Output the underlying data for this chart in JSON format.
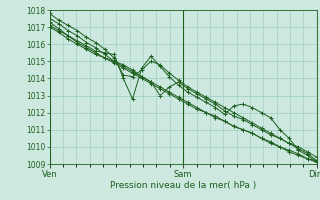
{
  "title": "",
  "xlabel": "Pression niveau de la mer( hPa )",
  "bg_color": "#cce8df",
  "grid_color": "#99cbbf",
  "line_color": "#1e5e1e",
  "ylim": [
    1009,
    1018
  ],
  "yticks": [
    1009,
    1010,
    1011,
    1012,
    1013,
    1014,
    1015,
    1016,
    1017,
    1018
  ],
  "xtick_labels": [
    "Ven",
    "Sam",
    "Dim"
  ],
  "xtick_positions": [
    0.0,
    0.5,
    1.0
  ],
  "vline_positions": [
    0.0,
    0.5,
    1.0
  ],
  "series": [
    [
      1017.5,
      1017.2,
      1016.8,
      1016.5,
      1016.1,
      1015.8,
      1015.4,
      1015.0,
      1014.8,
      1014.5,
      1014.1,
      1013.8,
      1013.5,
      1013.2,
      1012.9,
      1012.6,
      1012.3,
      1012.0,
      1011.8,
      1011.5,
      1011.2,
      1011.0,
      1010.8,
      1010.5,
      1010.2,
      1010.0,
      1009.7,
      1009.5,
      1009.3,
      1009.2
    ],
    [
      1017.0,
      1016.7,
      1016.3,
      1016.0,
      1015.7,
      1015.4,
      1015.2,
      1015.0,
      1014.7,
      1014.4,
      1014.1,
      1013.8,
      1013.0,
      1013.5,
      1013.8,
      1013.4,
      1013.1,
      1012.8,
      1012.5,
      1012.1,
      1011.8,
      1011.6,
      1011.3,
      1011.0,
      1010.7,
      1010.5,
      1010.2,
      1010.0,
      1009.7,
      1009.4
    ],
    [
      1017.8,
      1017.4,
      1017.1,
      1016.8,
      1016.4,
      1016.1,
      1015.7,
      1015.2,
      1014.2,
      1014.1,
      1014.5,
      1015.0,
      1014.8,
      1014.3,
      1013.9,
      1013.5,
      1013.2,
      1012.9,
      1012.6,
      1012.3,
      1012.0,
      1011.7,
      1011.4,
      1011.1,
      1010.8,
      1010.5,
      1010.2,
      1009.9,
      1009.6,
      1009.2
    ],
    [
      1017.3,
      1016.9,
      1016.5,
      1016.2,
      1015.9,
      1015.6,
      1015.5,
      1015.4,
      1014.0,
      1012.8,
      1014.6,
      1015.3,
      1014.7,
      1014.1,
      1013.6,
      1013.2,
      1012.9,
      1012.6,
      1012.3,
      1011.9,
      1012.4,
      1012.5,
      1012.3,
      1012.0,
      1011.7,
      1011.0,
      1010.5,
      1009.8,
      1009.5,
      1009.1
    ],
    [
      1017.1,
      1016.8,
      1016.5,
      1016.1,
      1015.8,
      1015.5,
      1015.2,
      1014.9,
      1014.6,
      1014.3,
      1014.0,
      1013.7,
      1013.4,
      1013.1,
      1012.8,
      1012.5,
      1012.2,
      1012.0,
      1011.7,
      1011.5,
      1011.2,
      1011.0,
      1010.8,
      1010.5,
      1010.3,
      1010.0,
      1009.8,
      1009.6,
      1009.3,
      1009.1
    ]
  ]
}
